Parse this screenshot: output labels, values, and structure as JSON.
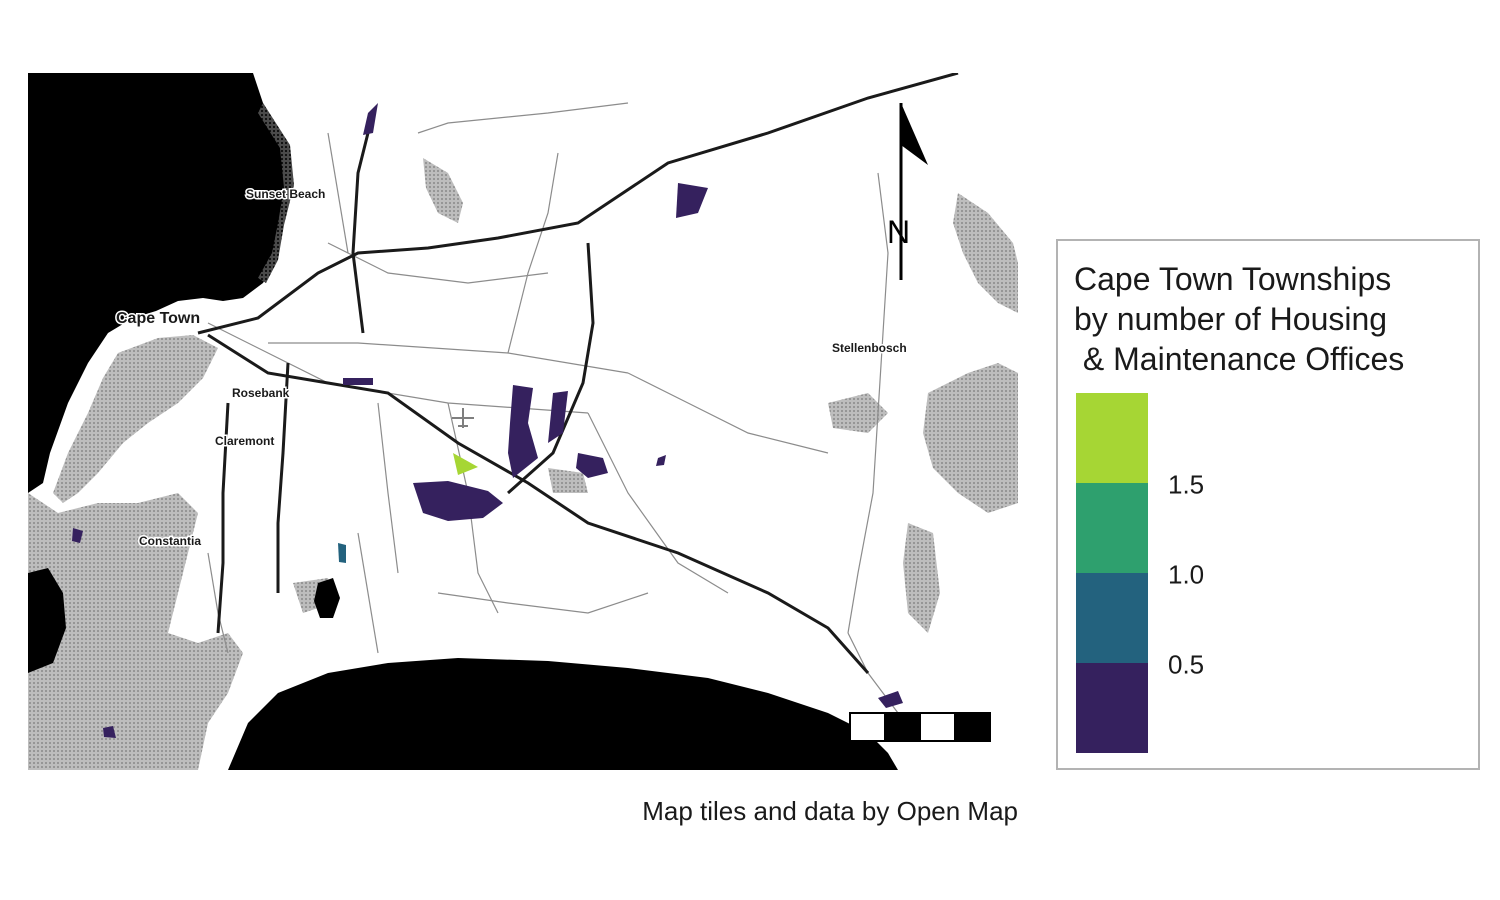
{
  "map": {
    "places": [
      "Sunset Beach",
      "Cape Town",
      "Rosebank",
      "Claremont",
      "Constantia",
      "Stellenbosch"
    ],
    "north_label": "N",
    "airport_icon": "airplane-icon",
    "colors": {
      "water": "#000000",
      "land": "#ffffff",
      "roads": "#6e6e6e",
      "highways": "#1a1a1a",
      "parks": "#a6a6a6"
    }
  },
  "legend": {
    "title": "Cape Town Townships\nby number of Housing\n & Maintenance Offices",
    "ticks": [
      "1.5",
      "1.0",
      "0.5"
    ],
    "colors": [
      "#a6d634",
      "#2ea06e",
      "#23627e",
      "#35215e"
    ]
  },
  "caption": "Map tiles and data by Open Map"
}
